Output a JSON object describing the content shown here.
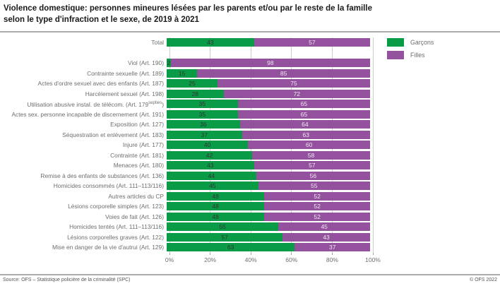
{
  "header": {
    "title_line1": "Violence domestique: personnes mineures lésées par les parents et/ou par le reste de la famille",
    "title_line2": "selon le type d'infraction et le sexe, de 2019 à 2021"
  },
  "footer": {
    "source": "Source: OFS – Statistique policière de la criminalité (SPC)",
    "copyright": "© OFS 2022"
  },
  "chart_data": {
    "type": "bar",
    "stacked": true,
    "orientation": "horizontal",
    "title": "Violence domestique: personnes mineures lésées par les parents et/ou par le reste de la famille selon le type d'infraction et le sexe, de 2019 à 2021",
    "unit": "%",
    "xlim": [
      0,
      100
    ],
    "grid": true,
    "legend_position": "top-right",
    "x_ticks": [
      "0%",
      "20%",
      "40%",
      "60%",
      "80%",
      "100%"
    ],
    "categories": [
      "Total",
      "",
      "Viol (Art. 190)",
      "Contrainte sexuelle (Art. 189)",
      "Actes d'ordre sexuel avec des enfants (Art. 187)",
      "Harcèlement sexuel (Art. 198)",
      {
        "label": "Utilisation abusive instal. de télécom. (Art. 179",
        "sup": "septies",
        "tail": ")"
      },
      "Actes sex. personne incapable de discernement (Art. 191)",
      "Exposition (Art. 127)",
      "Séquestration et enlèvement (Art. 183)",
      "Injure (Art. 177)",
      "Contrainte (Art. 181)",
      "Menaces (Art. 180)",
      "Remise à des enfants de substances (Art. 136)",
      "Homicides consommés (Art. 111–113/116)",
      "Autres articles du CP",
      "Lésions corporelle simples (Art. 123)",
      "Voies de fait (Art. 126)",
      "Homicides tentés (Art. 111–113/116)",
      "Lésions corporelles graves (Art. 122)",
      "Mise en danger de la vie d'autrui (Art. 129)"
    ],
    "series": [
      {
        "name": "Garçons",
        "color": "#0a9b46",
        "value_label_color": "#333333",
        "values": [
          43,
          null,
          2,
          15,
          25,
          28,
          35,
          35,
          36,
          37,
          40,
          42,
          43,
          44,
          45,
          48,
          48,
          48,
          55,
          57,
          63
        ]
      },
      {
        "name": "Filles",
        "color": "#94519e",
        "value_label_color": "#efe6f1",
        "values": [
          57,
          null,
          98,
          85,
          75,
          72,
          65,
          65,
          64,
          63,
          60,
          58,
          57,
          56,
          55,
          52,
          52,
          52,
          45,
          43,
          37
        ]
      }
    ]
  }
}
